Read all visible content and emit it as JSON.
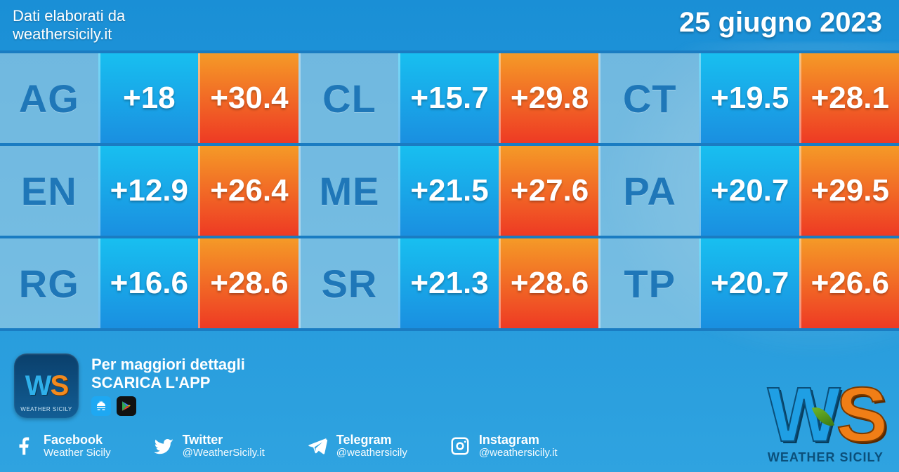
{
  "header": {
    "attribution_line1": "Dati elaborati da",
    "attribution_line2": "weathersicily.it",
    "date": "25 giugno 2023"
  },
  "table": {
    "type": "temperature-grid",
    "layout": {
      "rows": 3,
      "groups_per_row": 3,
      "cells_per_group": 3
    },
    "cell_border_color": "#ffffff66",
    "row_divider_color": "#1a7cc2",
    "code_cell": {
      "bg": "#b7d8e7",
      "fg": "#1f77b8",
      "fontsize": 56
    },
    "min_cell": {
      "gradient_top": "#18bff0",
      "gradient_bottom": "#1a8fe0",
      "fg": "#ffffff",
      "fontsize": 44
    },
    "max_cell": {
      "gradient_top": "#f59a27",
      "gradient_bottom": "#ee3a24",
      "fg": "#ffffff",
      "fontsize": 44
    },
    "provinces": [
      {
        "code": "AG",
        "min": "+18",
        "max": "+30.4"
      },
      {
        "code": "CL",
        "min": "+15.7",
        "max": "+29.8"
      },
      {
        "code": "CT",
        "min": "+19.5",
        "max": "+28.1"
      },
      {
        "code": "EN",
        "min": "+12.9",
        "max": "+26.4"
      },
      {
        "code": "ME",
        "min": "+21.5",
        "max": "+27.6"
      },
      {
        "code": "PA",
        "min": "+20.7",
        "max": "+29.5"
      },
      {
        "code": "RG",
        "min": "+16.6",
        "max": "+28.6"
      },
      {
        "code": "SR",
        "min": "+21.3",
        "max": "+28.6"
      },
      {
        "code": "TP",
        "min": "+20.7",
        "max": "+26.6"
      }
    ]
  },
  "footer": {
    "app_cta_line1": "Per maggiori dettagli",
    "app_cta_line2": "SCARICA L'APP",
    "brand_short": "WS",
    "brand_sub": "WEATHER SICILY",
    "socials": [
      {
        "icon": "facebook",
        "name": "Facebook",
        "handle": "Weather Sicily"
      },
      {
        "icon": "twitter",
        "name": "Twitter",
        "handle": "@WeatherSicily.it"
      },
      {
        "icon": "telegram",
        "name": "Telegram",
        "handle": "@weathersicily"
      },
      {
        "icon": "instagram",
        "name": "Instagram",
        "handle": "@weathersicily.it"
      }
    ]
  },
  "colors": {
    "bg_top": "#1a8fd6",
    "bg_bottom": "#2fa3e0",
    "text": "#ffffff"
  }
}
